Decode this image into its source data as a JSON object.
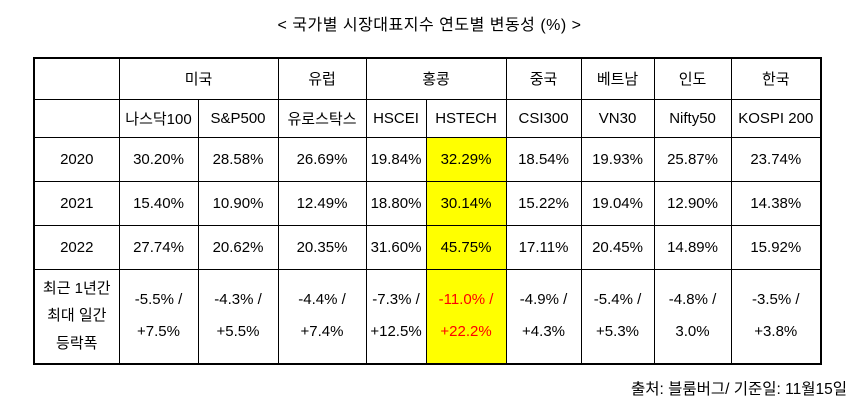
{
  "title": "< 국가별 시장대표지수 연도별 변동성 (%) >",
  "footer": "출처: 블룸버그/ 기준일: 11월15일",
  "colors": {
    "highlight_background": "#FFFF00",
    "alert_text": "#FF0000",
    "border": "#000000",
    "text": "#000000"
  },
  "table": {
    "country_header": [
      {
        "label": "",
        "colspan": 1
      },
      {
        "label": "미국",
        "colspan": 2
      },
      {
        "label": "유럽",
        "colspan": 1
      },
      {
        "label": "홍콩",
        "colspan": 2
      },
      {
        "label": "중국",
        "colspan": 1
      },
      {
        "label": "베트남",
        "colspan": 1
      },
      {
        "label": "인도",
        "colspan": 1
      },
      {
        "label": "한국",
        "colspan": 1
      }
    ],
    "index_header": [
      "",
      "나스닥100",
      "S&P500",
      "유로스탁스",
      "HSCEI",
      "HSTECH",
      "CSI300",
      "VN30",
      "Nifty50",
      "KOSPI 200"
    ],
    "highlight_column_index": 4,
    "alert_cell_row_index": 3,
    "rows": [
      {
        "label": "2020",
        "values": [
          "30.20%",
          "28.58%",
          "26.69%",
          "19.84%",
          "32.29%",
          "18.54%",
          "19.93%",
          "25.87%",
          "23.74%"
        ]
      },
      {
        "label": "2021",
        "values": [
          "15.40%",
          "10.90%",
          "12.49%",
          "18.80%",
          "30.14%",
          "15.22%",
          "19.04%",
          "12.90%",
          "14.38%"
        ]
      },
      {
        "label": "2022",
        "values": [
          "27.74%",
          "20.62%",
          "20.35%",
          "31.60%",
          "45.75%",
          "17.11%",
          "20.45%",
          "14.89%",
          "15.92%"
        ]
      },
      {
        "label": "최근 1년간\n최대 일간\n등락폭",
        "values": [
          "-5.5% /\n+7.5%",
          "-4.3% /\n+5.5%",
          "-4.4% /\n+7.4%",
          "-7.3% /\n+12.5%",
          "-11.0% /\n+22.2%",
          "-4.9% /\n+4.3%",
          "-5.4% /\n+5.3%",
          "-4.8% /\n3.0%",
          "-3.5% /\n+3.8%"
        ]
      }
    ]
  }
}
